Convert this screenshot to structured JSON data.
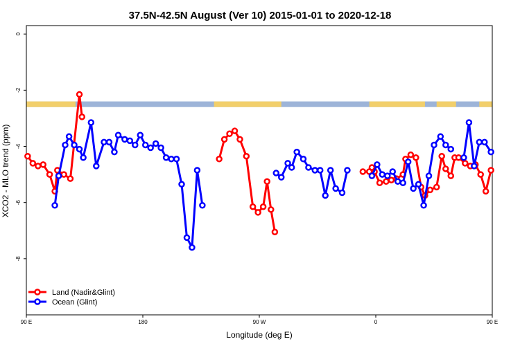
{
  "chart_data": {
    "type": "line",
    "title": "37.5N-42.5N August (Ver 10)   2015-01-01 to 2020-12-18",
    "xlabel": "Longitude (deg E)",
    "ylabel": "XCO2 - MLO trend (ppm)",
    "xlim": [
      90,
      450
    ],
    "ylim": [
      -10,
      0.3
    ],
    "x_ticks": [
      {
        "value": 90,
        "label": "90 E"
      },
      {
        "value": 180,
        "label": "180"
      },
      {
        "value": 270,
        "label": "90 W"
      },
      {
        "value": 360,
        "label": "0"
      },
      {
        "value": 450,
        "label": "90 E"
      }
    ],
    "y_ticks": [
      {
        "value": 0,
        "label": "0"
      },
      {
        "value": -2,
        "label": "-2"
      },
      {
        "value": -4,
        "label": "-4"
      },
      {
        "value": -6,
        "label": "-6"
      },
      {
        "value": -8,
        "label": "-8"
      }
    ],
    "land_ocean_strip": {
      "y_range": [
        -2.6,
        -2.4
      ],
      "land_color": "#F2CF6B",
      "ocean_color": "#9DB4D8",
      "land_segments": [
        [
          90,
          128
        ],
        [
          235,
          287
        ],
        [
          355,
          398
        ],
        [
          407,
          422
        ],
        [
          440,
          450
        ]
      ]
    },
    "legend": {
      "placement": "bottom-left"
    },
    "series": [
      {
        "name": "Land (Nadir&Glint)",
        "color": "#FF0000",
        "segments": [
          {
            "x": [
              91,
              95,
              99,
              103,
              108,
              112,
              114,
              119,
              124,
              131,
              133
            ],
            "y": [
              -4.35,
              -4.6,
              -4.7,
              -4.65,
              -5.0,
              -5.6,
              -4.85,
              -5.0,
              -5.15,
              -2.15,
              -2.95
            ]
          },
          {
            "x": [
              239,
              243,
              247,
              251,
              255,
              260,
              265,
              269,
              273,
              276,
              279,
              282
            ],
            "y": [
              -4.45,
              -3.75,
              -3.55,
              -3.45,
              -3.75,
              -4.35,
              -6.15,
              -6.35,
              -6.15,
              -5.25,
              -6.25,
              -7.05
            ]
          },
          {
            "x": [
              350,
              355,
              357,
              359,
              363,
              368,
              372,
              376,
              381,
              383,
              387,
              391,
              395,
              398,
              402,
              407,
              411,
              414,
              418,
              421,
              424,
              429,
              433,
              437,
              441,
              445,
              449
            ],
            "y": [
              -4.9,
              -4.9,
              -4.75,
              -4.9,
              -5.3,
              -5.25,
              -5.2,
              -5.15,
              -5.0,
              -4.45,
              -4.3,
              -4.4,
              -5.45,
              -5.75,
              -5.55,
              -5.45,
              -4.35,
              -4.8,
              -5.05,
              -4.4,
              -4.4,
              -4.6,
              -4.7,
              -4.65,
              -5.0,
              -5.6,
              -4.85
            ]
          }
        ]
      },
      {
        "name": "Ocean (Glint)",
        "color": "#0000FF",
        "segments": [
          {
            "x": [
              112,
              115,
              120,
              123,
              127,
              131,
              134,
              140,
              144,
              150,
              154,
              158,
              161,
              166,
              170,
              174,
              178,
              182,
              186,
              190,
              194,
              198,
              202,
              206,
              210,
              214,
              218,
              222,
              226
            ],
            "y": [
              -6.1,
              -5.05,
              -3.95,
              -3.65,
              -3.95,
              -4.1,
              -4.4,
              -3.15,
              -4.7,
              -3.85,
              -3.85,
              -4.2,
              -3.6,
              -3.75,
              -3.8,
              -3.95,
              -3.6,
              -3.95,
              -4.05,
              -3.9,
              -4.05,
              -4.4,
              -4.45,
              -4.45,
              -5.35,
              -7.25,
              -7.6,
              -4.85,
              -6.1
            ]
          },
          {
            "x": [
              283,
              287,
              292,
              295,
              299,
              304,
              308,
              313,
              317,
              321,
              325,
              329,
              334,
              338
            ],
            "y": [
              -4.95,
              -5.1,
              -4.6,
              -4.75,
              -4.2,
              -4.45,
              -4.75,
              -4.85,
              -4.85,
              -5.75,
              -4.85,
              -5.5,
              -5.65,
              -4.85
            ]
          },
          {
            "x": [
              357,
              361,
              365,
              369,
              373,
              377,
              381,
              385,
              389,
              393,
              397,
              401,
              405,
              410,
              414,
              418
            ],
            "y": [
              -5.05,
              -4.65,
              -5.0,
              -5.05,
              -4.9,
              -5.25,
              -5.3,
              -4.55,
              -5.5,
              -5.35,
              -6.1,
              -5.05,
              -3.95,
              -3.65,
              -3.95,
              -4.1
            ]
          },
          {
            "x": [
              428,
              432,
              436,
              440,
              444,
              449
            ],
            "y": [
              -4.4,
              -3.15,
              -4.7,
              -3.85,
              -3.85,
              -4.2
            ]
          }
        ]
      }
    ]
  }
}
